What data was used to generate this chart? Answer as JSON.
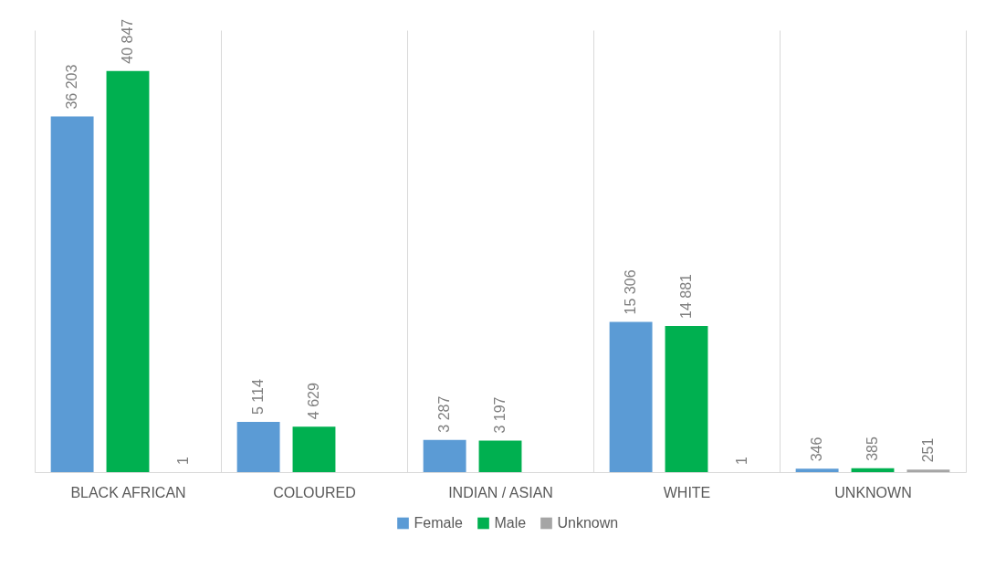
{
  "chart_data": {
    "type": "bar",
    "categories": [
      "BLACK AFRICAN",
      "COLOURED",
      "INDIAN / ASIAN",
      "WHITE",
      "UNKNOWN"
    ],
    "series": [
      {
        "name": "Female",
        "color": "#5b9bd5",
        "values": [
          36203,
          5114,
          3287,
          15306,
          346
        ],
        "value_labels": [
          "36 203",
          "5 114",
          "3 287",
          "15 306",
          "346"
        ]
      },
      {
        "name": "Male",
        "color": "#00b050",
        "values": [
          40847,
          4629,
          3197,
          14881,
          385
        ],
        "value_labels": [
          "40 847",
          "4 629",
          "3 197",
          "14 881",
          "385"
        ]
      },
      {
        "name": "Unknown",
        "color": "#a5a5a5",
        "values": [
          1,
          null,
          null,
          1,
          251
        ],
        "value_labels": [
          "1",
          null,
          null,
          "1",
          "251"
        ]
      }
    ],
    "grid": "x",
    "legend": "bottom",
    "tick_labels": "x"
  }
}
